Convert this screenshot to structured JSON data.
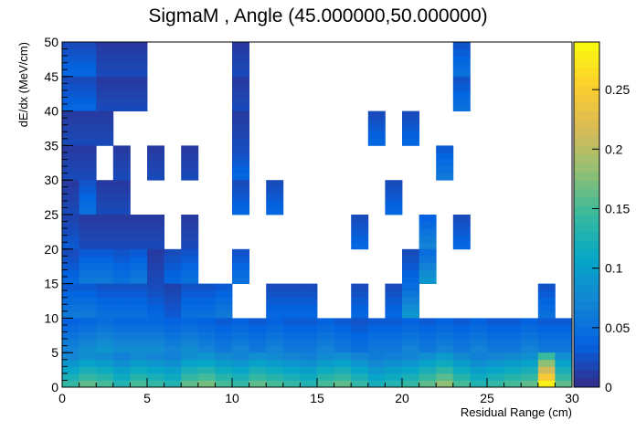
{
  "chart_data": {
    "type": "heatmap",
    "title": "SigmaM , Angle (45.000000,50.000000)",
    "xlabel": "Residual Range (cm)",
    "ylabel": "dE/dx (MeV/cm)",
    "xlim": [
      0,
      30
    ],
    "ylim": [
      0,
      50
    ],
    "xticks": [
      0,
      5,
      10,
      15,
      20,
      25,
      30
    ],
    "yticks": [
      0,
      5,
      10,
      15,
      20,
      25,
      30,
      35,
      40,
      45,
      50
    ],
    "zlim": [
      0,
      0.29
    ],
    "zticks": [
      0,
      0.05,
      0.1,
      0.15,
      0.2,
      0.25
    ],
    "palette": [
      "#352a87",
      "#0363e1",
      "#1485d4",
      "#06a7c6",
      "#38b99e",
      "#92bf73",
      "#d9ba56",
      "#fcce2e",
      "#f9fb0e"
    ],
    "x_bin_width": 1,
    "y_bin_width": 1,
    "cells": [
      [
        0,
        45,
        0.04
      ],
      [
        1,
        45,
        0.04
      ],
      [
        2,
        45,
        0.02
      ],
      [
        3,
        45,
        0.02
      ],
      [
        4,
        45,
        0.02
      ],
      [
        10,
        45,
        0.02
      ],
      [
        23,
        45,
        0.05
      ],
      [
        0,
        40,
        0.04
      ],
      [
        1,
        40,
        0.04
      ],
      [
        2,
        40,
        0.02
      ],
      [
        3,
        40,
        0.02
      ],
      [
        4,
        40,
        0.02
      ],
      [
        10,
        40,
        0.02
      ],
      [
        23,
        40,
        0.05
      ],
      [
        0,
        35,
        0.02
      ],
      [
        1,
        35,
        0.02
      ],
      [
        2,
        35,
        0.02
      ],
      [
        10,
        35,
        0.02
      ],
      [
        18,
        35,
        0.04
      ],
      [
        20,
        35,
        0.04
      ],
      [
        0,
        30,
        0.02
      ],
      [
        1,
        30,
        0.02
      ],
      [
        3,
        30,
        0.02
      ],
      [
        5,
        30,
        0.02
      ],
      [
        7,
        30,
        0.02
      ],
      [
        10,
        30,
        0.04
      ],
      [
        22,
        30,
        0.06
      ],
      [
        0,
        25,
        0.02
      ],
      [
        1,
        25,
        0.05
      ],
      [
        2,
        25,
        0.02
      ],
      [
        3,
        25,
        0.02
      ],
      [
        10,
        25,
        0.04
      ],
      [
        12,
        25,
        0.04
      ],
      [
        19,
        25,
        0.04
      ],
      [
        0,
        20,
        0.03
      ],
      [
        1,
        20,
        0.02
      ],
      [
        2,
        20,
        0.02
      ],
      [
        3,
        20,
        0.02
      ],
      [
        4,
        20,
        0.02
      ],
      [
        5,
        20,
        0.02
      ],
      [
        7,
        20,
        0.02
      ],
      [
        17,
        20,
        0.04
      ],
      [
        21,
        20,
        0.07
      ],
      [
        23,
        20,
        0.04
      ],
      [
        0,
        15,
        0.04
      ],
      [
        1,
        15,
        0.06
      ],
      [
        2,
        15,
        0.06
      ],
      [
        3,
        15,
        0.05
      ],
      [
        4,
        15,
        0.06
      ],
      [
        5,
        15,
        0.02
      ],
      [
        6,
        15,
        0.04
      ],
      [
        7,
        15,
        0.05
      ],
      [
        10,
        15,
        0.05
      ],
      [
        20,
        15,
        0.04
      ],
      [
        21,
        15,
        0.09
      ],
      [
        0,
        10,
        0.06
      ],
      [
        1,
        10,
        0.06
      ],
      [
        2,
        10,
        0.05
      ],
      [
        3,
        10,
        0.05
      ],
      [
        4,
        10,
        0.05
      ],
      [
        5,
        10,
        0.04
      ],
      [
        6,
        10,
        0.03
      ],
      [
        7,
        10,
        0.05
      ],
      [
        8,
        10,
        0.05
      ],
      [
        9,
        10,
        0.06
      ],
      [
        12,
        10,
        0.04
      ],
      [
        13,
        10,
        0.04
      ],
      [
        14,
        10,
        0.04
      ],
      [
        17,
        10,
        0.04
      ],
      [
        19,
        10,
        0.04
      ],
      [
        20,
        10,
        0.09
      ],
      [
        28,
        10,
        0.05
      ],
      [
        0,
        5,
        0.07
      ],
      [
        1,
        5,
        0.08
      ],
      [
        2,
        5,
        0.09
      ],
      [
        3,
        5,
        0.08
      ],
      [
        4,
        5,
        0.08
      ],
      [
        5,
        5,
        0.08
      ],
      [
        6,
        5,
        0.07
      ],
      [
        7,
        5,
        0.08
      ],
      [
        8,
        5,
        0.07
      ],
      [
        9,
        5,
        0.06
      ],
      [
        10,
        5,
        0.07
      ],
      [
        11,
        5,
        0.06
      ],
      [
        12,
        5,
        0.07
      ],
      [
        13,
        5,
        0.06
      ],
      [
        14,
        5,
        0.06
      ],
      [
        15,
        5,
        0.07
      ],
      [
        16,
        5,
        0.06
      ],
      [
        17,
        5,
        0.05
      ],
      [
        18,
        5,
        0.06
      ],
      [
        19,
        5,
        0.06
      ],
      [
        20,
        5,
        0.07
      ],
      [
        21,
        5,
        0.06
      ],
      [
        22,
        5,
        0.07
      ],
      [
        23,
        5,
        0.06
      ],
      [
        24,
        5,
        0.07
      ],
      [
        25,
        5,
        0.06
      ],
      [
        26,
        5,
        0.06
      ],
      [
        27,
        5,
        0.07
      ],
      [
        28,
        5,
        0.06
      ],
      [
        29,
        5,
        0.06
      ],
      [
        0,
        0,
        0.14
      ],
      [
        1,
        0,
        0.16
      ],
      [
        2,
        0,
        0.15
      ],
      [
        3,
        0,
        0.13
      ],
      [
        4,
        0,
        0.15
      ],
      [
        5,
        0,
        0.14
      ],
      [
        6,
        0,
        0.13
      ],
      [
        7,
        0,
        0.16
      ],
      [
        8,
        0,
        0.17
      ],
      [
        9,
        0,
        0.15
      ],
      [
        10,
        0,
        0.14
      ],
      [
        11,
        0,
        0.16
      ],
      [
        12,
        0,
        0.15
      ],
      [
        13,
        0,
        0.14
      ],
      [
        14,
        0,
        0.13
      ],
      [
        15,
        0,
        0.15
      ],
      [
        16,
        0,
        0.16
      ],
      [
        17,
        0,
        0.14
      ],
      [
        18,
        0,
        0.12
      ],
      [
        19,
        0,
        0.13
      ],
      [
        20,
        0,
        0.14
      ],
      [
        21,
        0,
        0.16
      ],
      [
        22,
        0,
        0.18
      ],
      [
        23,
        0,
        0.15
      ],
      [
        24,
        0,
        0.13
      ],
      [
        25,
        0,
        0.14
      ],
      [
        26,
        0,
        0.15
      ],
      [
        27,
        0,
        0.16
      ],
      [
        28,
        0,
        0.28
      ],
      [
        29,
        0,
        0.16
      ]
    ]
  }
}
